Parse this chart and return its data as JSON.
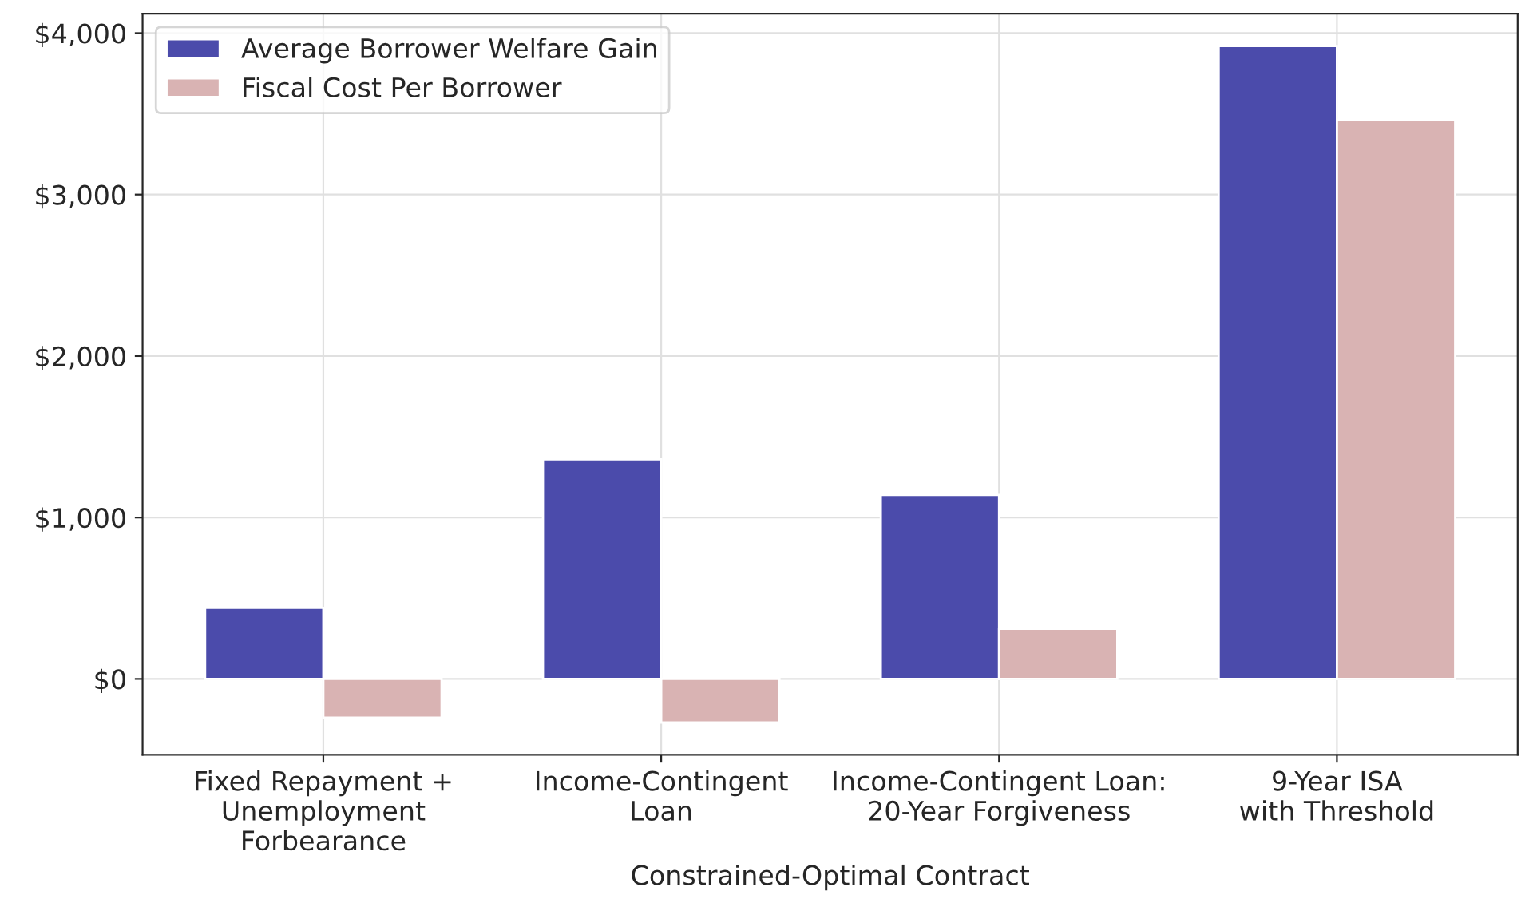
{
  "chart_data": {
    "type": "bar",
    "xlabel": "Constrained-Optimal Contract",
    "categories": [
      "Fixed Repayment +\nUnemployment\nForbearance",
      "Income-Contingent\nLoan",
      "Income-Contingent Loan:\n20-Year Forgiveness",
      "9-Year ISA\nwith Threshold"
    ],
    "series": [
      {
        "name": "Average Borrower Welfare Gain",
        "color": "#4b4bab",
        "values": [
          440,
          1360,
          1140,
          3920
        ]
      },
      {
        "name": "Fiscal Cost Per Borrower",
        "color": "#d9b3b3",
        "values": [
          -240,
          -270,
          310,
          3460
        ]
      }
    ],
    "ylim": [
      -470,
      4120
    ],
    "yticks": [
      {
        "value": 0,
        "label": "$0"
      },
      {
        "value": 1000,
        "label": "$1,000"
      },
      {
        "value": 2000,
        "label": "$2,000"
      },
      {
        "value": 3000,
        "label": "$3,000"
      },
      {
        "value": 4000,
        "label": "$4,000"
      }
    ],
    "grid": true,
    "legend": "top left"
  }
}
